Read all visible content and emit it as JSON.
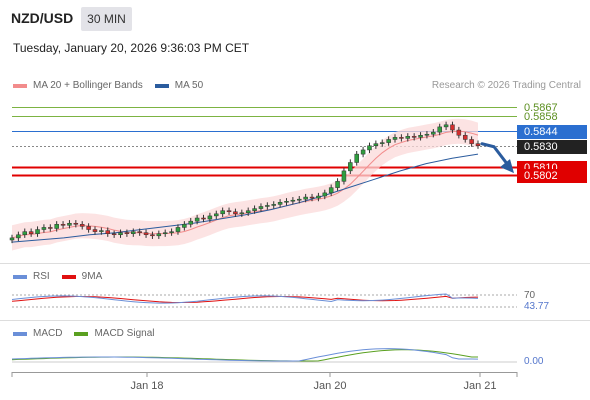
{
  "header": {
    "pair": "NZD/USD",
    "timeframe": "30 MIN",
    "datetime": "Tuesday, January 20, 2026 9:36:03 PM CET"
  },
  "main_legend": {
    "items": [
      {
        "label": "MA 20 + Bollinger Bands",
        "color": "#f28c8c"
      },
      {
        "label": "MA 50",
        "color": "#2b5c9e"
      }
    ]
  },
  "copyright": "Research © 2026 Trading Central",
  "rsi_legend": {
    "items": [
      {
        "label": "RSI",
        "color": "#6a8fd8"
      },
      {
        "label": "9MA",
        "color": "#e01010"
      }
    ]
  },
  "macd_legend": {
    "items": [
      {
        "label": "MACD",
        "color": "#6a8fd8"
      },
      {
        "label": "MACD Signal",
        "color": "#5aa020"
      }
    ]
  },
  "price_levels": [
    {
      "value": "0.5867",
      "kind": "resistance",
      "color": "#7cb342"
    },
    {
      "value": "0.5858",
      "kind": "resistance",
      "color": "#7cb342"
    },
    {
      "value": "0.5844",
      "kind": "pivot",
      "color": "#2b6fd0"
    },
    {
      "value": "0.5830",
      "kind": "last",
      "color": "#222222"
    },
    {
      "value": "0.5810",
      "kind": "support",
      "color": "#e00000"
    },
    {
      "value": "0.5802",
      "kind": "support",
      "color": "#e00000"
    }
  ],
  "rsi_axis": {
    "upper": "70",
    "current": "43.77",
    "lower": "30"
  },
  "macd_axis": {
    "zero": "0.00"
  },
  "time_axis": [
    "Jan 18",
    "Jan 20",
    "Jan 21"
  ],
  "chart_data": {
    "type": "candlestick",
    "x_ticks": [
      "Jan 18",
      "Jan 20",
      "Jan 21"
    ],
    "price_close_approx": [
      0.5742,
      0.5745,
      0.5748,
      0.5746,
      0.575,
      0.5752,
      0.5751,
      0.5755,
      0.5754,
      0.5756,
      0.5755,
      0.5753,
      0.575,
      0.5748,
      0.5749,
      0.5746,
      0.5745,
      0.5747,
      0.5746,
      0.5748,
      0.5747,
      0.5745,
      0.5744,
      0.5746,
      0.5747,
      0.5748,
      0.5752,
      0.5755,
      0.5758,
      0.5761,
      0.576,
      0.5763,
      0.5765,
      0.5768,
      0.5767,
      0.5765,
      0.5766,
      0.5768,
      0.577,
      0.5772,
      0.5773,
      0.5774,
      0.5776,
      0.5777,
      0.5778,
      0.5779,
      0.5781,
      0.578,
      0.5782,
      0.5785,
      0.579,
      0.5796,
      0.5806,
      0.5814,
      0.5822,
      0.5826,
      0.583,
      0.5832,
      0.5833,
      0.5836,
      0.5838,
      0.5837,
      0.5839,
      0.5838,
      0.584,
      0.5841,
      0.5843,
      0.5848,
      0.585,
      0.5845,
      0.584,
      0.5836,
      0.5832,
      0.583
    ],
    "ma50_approx": [
      0.5738,
      0.574,
      0.5742,
      0.5745,
      0.5747,
      0.575,
      0.5753,
      0.5756,
      0.576,
      0.5764,
      0.5769,
      0.5775,
      0.5782,
      0.579,
      0.5798,
      0.5806,
      0.5813,
      0.5818,
      0.5822
    ],
    "forecast": {
      "from": 0.583,
      "to": 0.5802,
      "direction": "down"
    },
    "rsi": {
      "value": 43.77,
      "levels": [
        70,
        30
      ]
    },
    "macd": {
      "zero": 0.0
    }
  }
}
